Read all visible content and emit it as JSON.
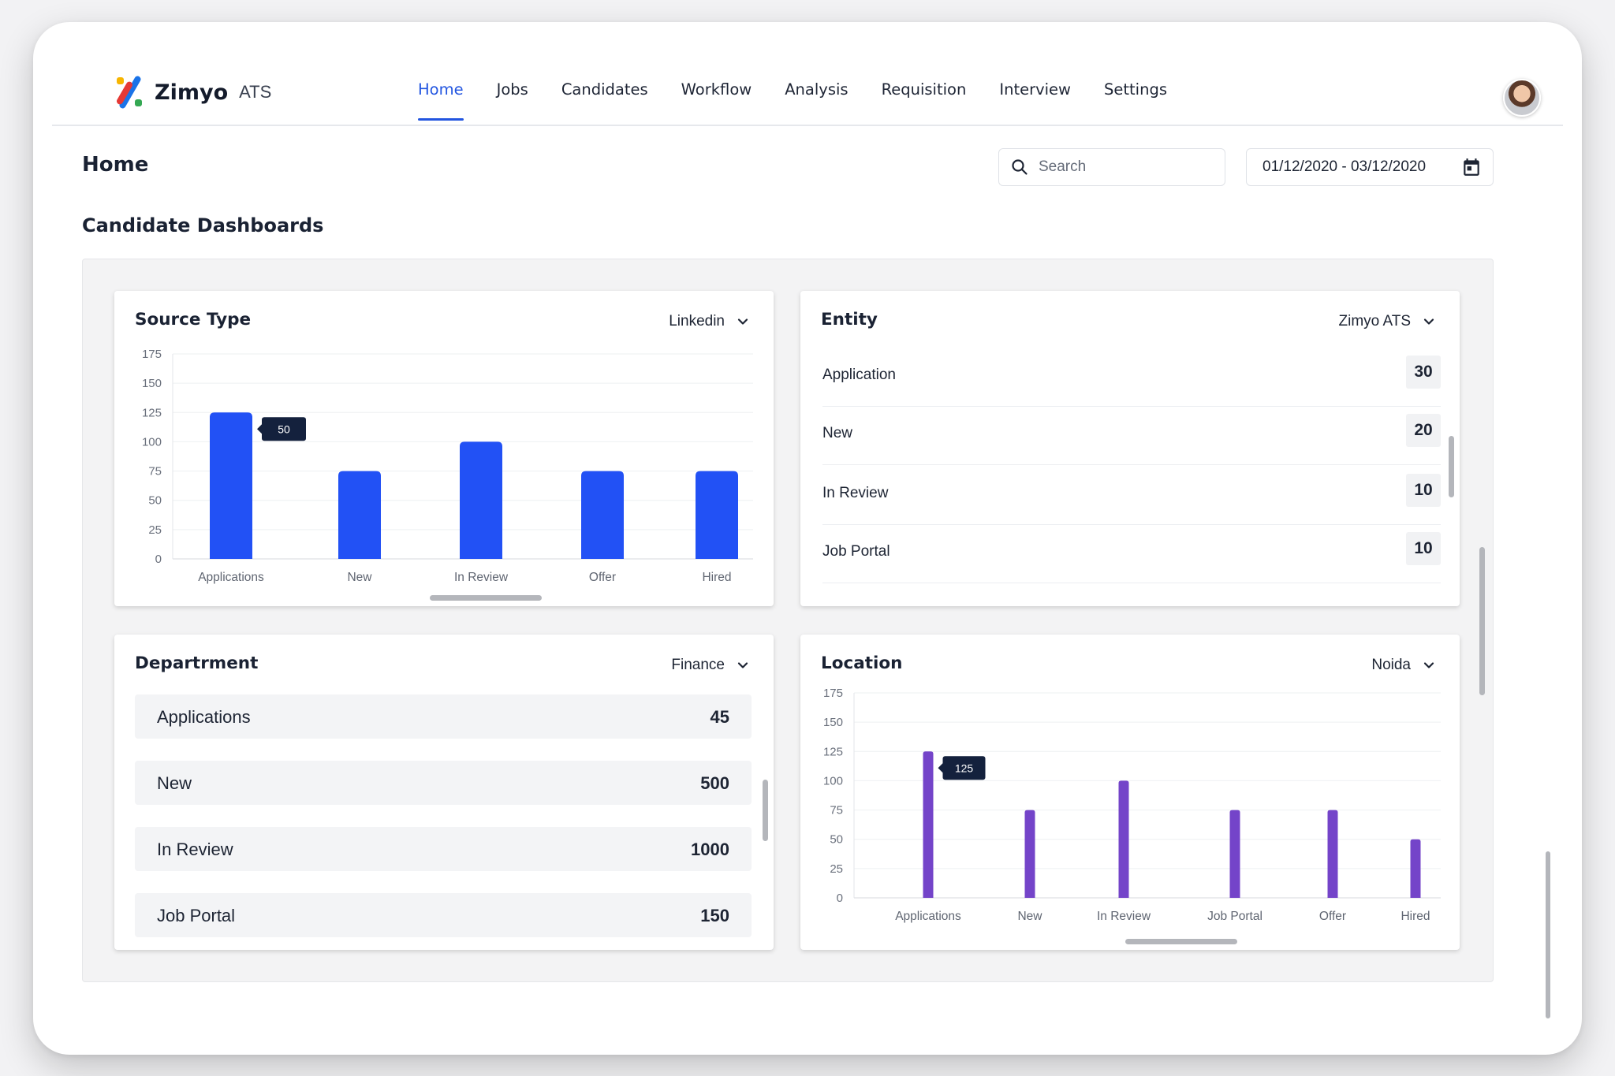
{
  "app": {
    "name": "Zimyo",
    "suffix": "ATS"
  },
  "nav": [
    {
      "label": "Home",
      "active": true
    },
    {
      "label": "Jobs"
    },
    {
      "label": "Candidates"
    },
    {
      "label": "Workflow"
    },
    {
      "label": "Analysis"
    },
    {
      "label": "Requisition"
    },
    {
      "label": "Interview"
    },
    {
      "label": "Settings"
    }
  ],
  "page": {
    "title": "Home",
    "section_title": "Candidate Dashboards"
  },
  "search": {
    "placeholder": "Search",
    "icon": "search-icon"
  },
  "date_range": {
    "value": "01/12/2020 - 03/12/2020",
    "icon": "calendar-icon"
  },
  "colors": {
    "accent": "#2255e0",
    "bar_blue": "#2251f5",
    "bar_purple": "#7444c9",
    "tooltip_bg": "#14213d"
  },
  "source_type": {
    "title": "Source Type",
    "filter": "Linkedin",
    "tooltip": "50"
  },
  "entity": {
    "title": "Entity",
    "filter": "Zimyo ATS",
    "rows": [
      {
        "label": "Application",
        "value": "30"
      },
      {
        "label": "New",
        "value": "20"
      },
      {
        "label": "In Review",
        "value": "10"
      },
      {
        "label": "Job Portal",
        "value": "10"
      }
    ]
  },
  "department": {
    "title": "Departrment",
    "filter": "Finance",
    "rows": [
      {
        "label": "Applications",
        "value": "45"
      },
      {
        "label": "New",
        "value": "500"
      },
      {
        "label": "In Review",
        "value": "1000"
      },
      {
        "label": "Job Portal",
        "value": "150"
      }
    ]
  },
  "location": {
    "title": "Location",
    "filter": "Noida",
    "tooltip": "125"
  },
  "chart_data": [
    {
      "type": "bar",
      "title": "Source Type",
      "categories": [
        "Applications",
        "New",
        "In Review",
        "Offer",
        "Hired"
      ],
      "values": [
        125,
        75,
        100,
        75,
        75
      ],
      "yticks": [
        0,
        25,
        50,
        75,
        100,
        125,
        150,
        175
      ],
      "ylim": [
        0,
        175
      ],
      "grid": true,
      "color": "#2251f5"
    },
    {
      "type": "bar",
      "title": "Location",
      "categories": [
        "Applications",
        "New",
        "In Review",
        "Job Portal",
        "Offer",
        "Hired"
      ],
      "values": [
        125,
        75,
        100,
        75,
        75,
        50
      ],
      "yticks": [
        0,
        25,
        50,
        75,
        100,
        125,
        150,
        175
      ],
      "ylim": [
        0,
        175
      ],
      "grid": true,
      "color": "#7444c9"
    }
  ]
}
